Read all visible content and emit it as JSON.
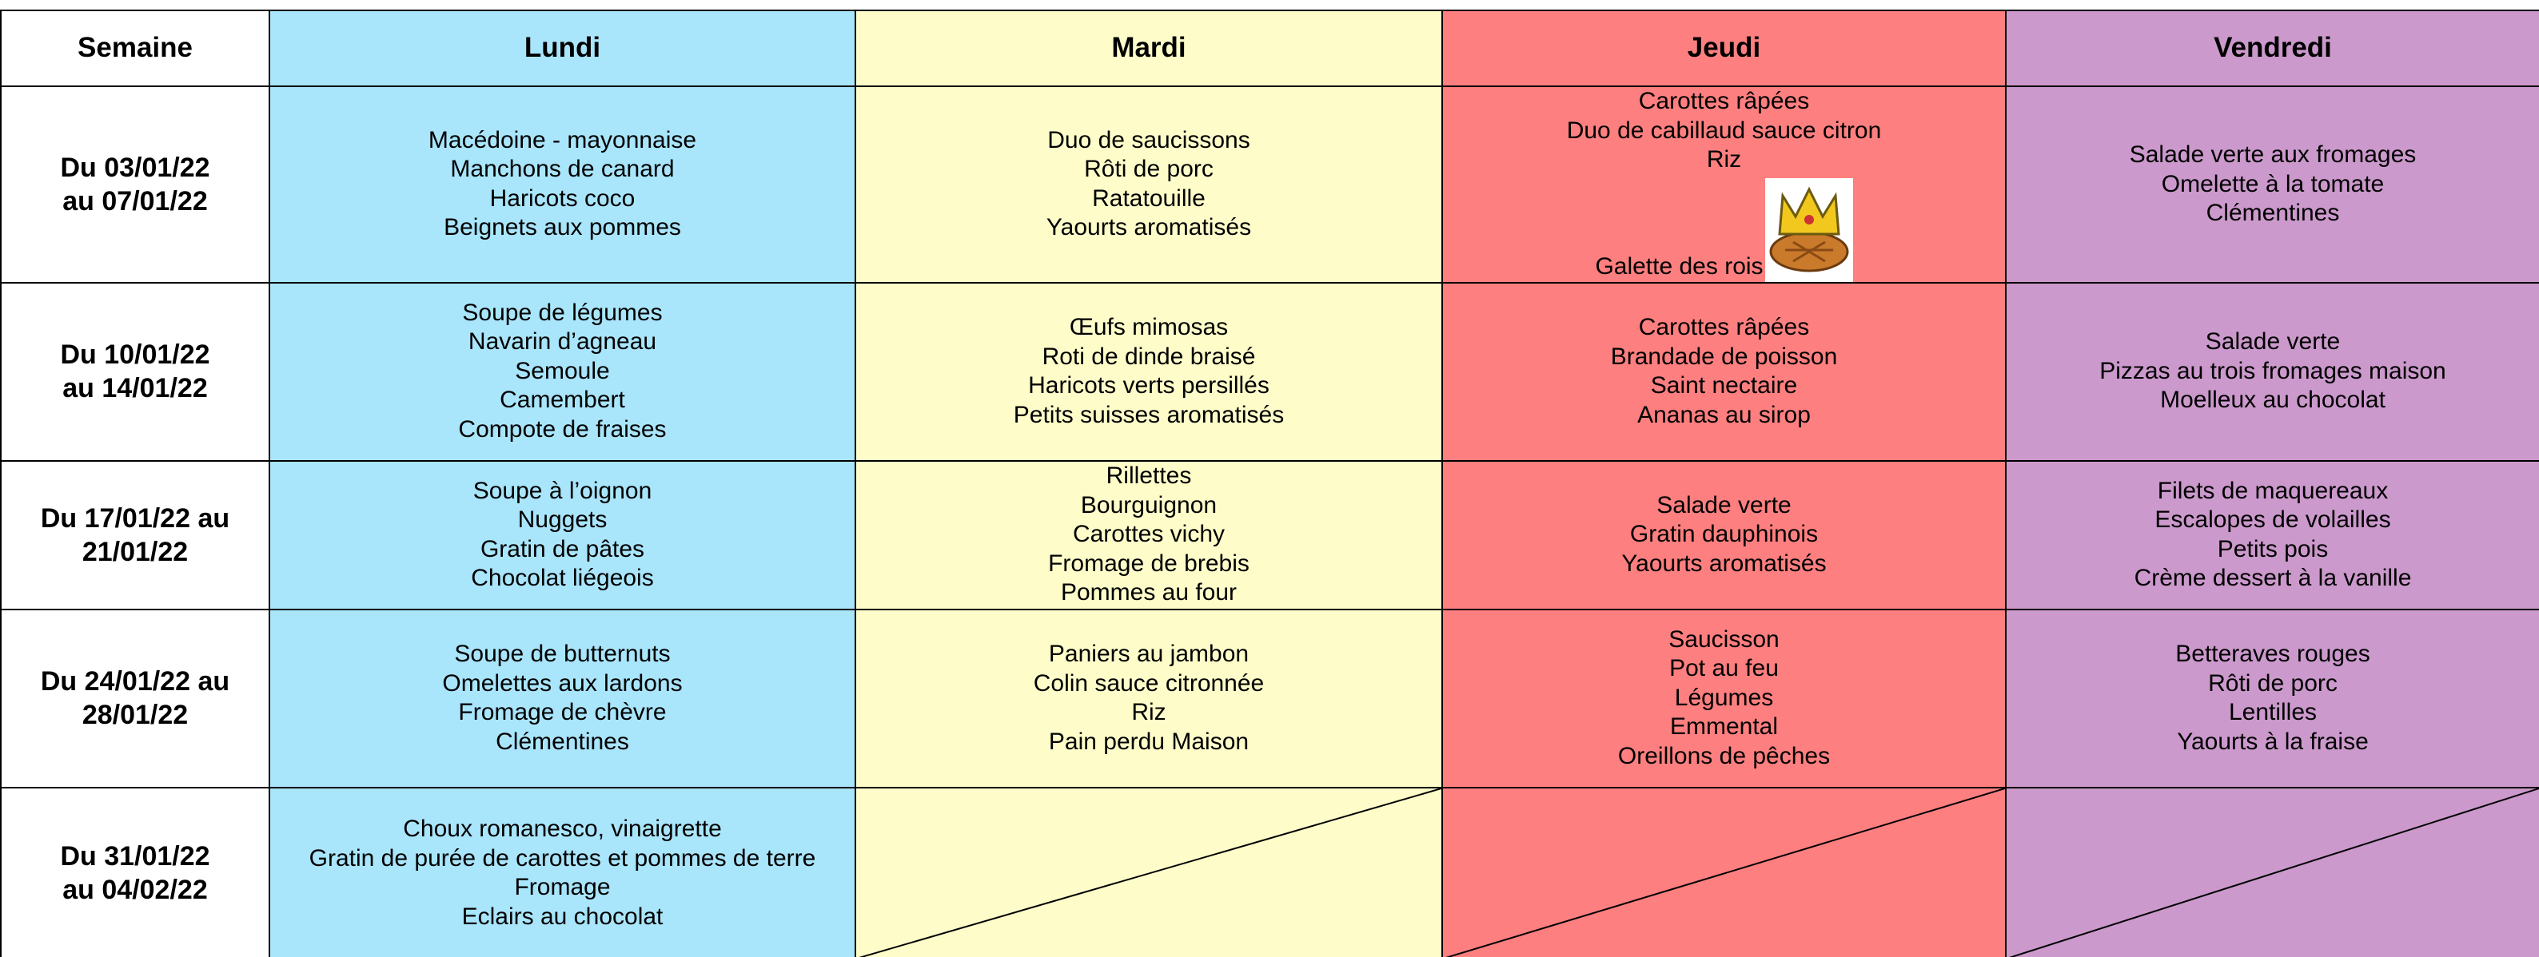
{
  "table": {
    "header": [
      "Semaine",
      "Lundi",
      "Mardi",
      "Jeudi",
      "Vendredi"
    ],
    "rows": [
      {
        "week": [
          "Du 03/01/22",
          "au 07/01/22"
        ],
        "cells": [
          [
            "Macédoine - mayonnaise",
            "Manchons de canard",
            "Haricots coco",
            "Beignets aux pommes"
          ],
          [
            "Duo de saucissons",
            "Rôti de porc",
            "Ratatouille",
            "Yaourts aromatisés"
          ],
          [
            "Carottes râpées",
            "Duo de cabillaud sauce citron",
            "Riz",
            "Galette des rois"
          ],
          [
            "Salade verte aux fromages",
            "Omelette à la tomate",
            "Clémentines"
          ]
        ]
      },
      {
        "week": [
          "Du 10/01/22",
          "au 14/01/22"
        ],
        "cells": [
          [
            "Soupe de légumes",
            "Navarin d’agneau",
            "Semoule",
            "Camembert",
            "Compote de fraises"
          ],
          [
            "Œufs mimosas",
            "Roti de dinde braisé",
            "Haricots verts persillés",
            "Petits suisses aromatisés"
          ],
          [
            "Carottes râpées",
            "Brandade de poisson",
            "Saint nectaire",
            "Ananas au sirop"
          ],
          [
            "Salade verte",
            "Pizzas au trois fromages maison",
            "Moelleux au chocolat"
          ]
        ]
      },
      {
        "week": [
          "Du 17/01/22 au",
          "21/01/22"
        ],
        "cells": [
          [
            "Soupe à l’oignon",
            "Nuggets",
            "Gratin de pâtes",
            "Chocolat liégeois"
          ],
          [
            "Rillettes",
            "Bourguignon",
            "Carottes vichy",
            "Fromage de brebis",
            "Pommes au four"
          ],
          [
            "Salade verte",
            "Gratin dauphinois",
            "Yaourts aromatisés"
          ],
          [
            "Filets de maquereaux",
            "Escalopes de volailles",
            "Petits pois",
            "Crème dessert à la vanille"
          ]
        ]
      },
      {
        "week": [
          "Du 24/01/22 au",
          "28/01/22"
        ],
        "cells": [
          [
            "Soupe de butternuts",
            "Omelettes aux lardons",
            "Fromage de chèvre",
            "Clémentines"
          ],
          [
            "Paniers au jambon",
            "Colin sauce citronnée",
            "Riz",
            "Pain perdu Maison"
          ],
          [
            "Saucisson",
            "Pot au feu",
            "Légumes",
            "Emmental",
            "Oreillons de pêches"
          ],
          [
            "Betteraves rouges",
            "Rôti de porc",
            "Lentilles",
            "Yaourts à la fraise"
          ]
        ]
      },
      {
        "week": [
          "Du 31/01/22",
          "au 04/02/22"
        ],
        "cells": [
          [
            "Choux romanesco, vinaigrette",
            "Gratin de purée de carottes et pommes de terre",
            "Fromage",
            "Eclairs au chocolat"
          ],
          null,
          null,
          null
        ]
      }
    ]
  }
}
